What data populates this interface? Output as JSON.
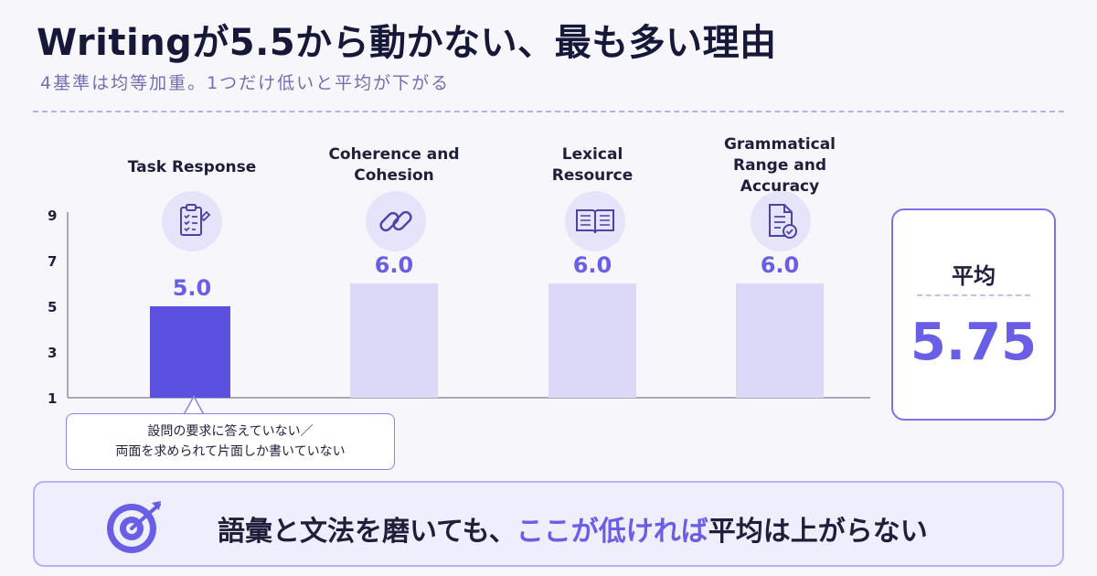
{
  "header": {
    "title": "Writingが5.5から動かない、最も多い理由",
    "subtitle": "4基準は均等加重。1つだけ低いと平均が下がる"
  },
  "chart_data": {
    "type": "bar",
    "categories": [
      "Task Response",
      "Coherence and Cohesion",
      "Lexical Resource",
      "Grammatical Range and Accuracy"
    ],
    "category_lines": [
      [
        "Task Response"
      ],
      [
        "Coherence and",
        "Cohesion"
      ],
      [
        "Lexical",
        "Resource"
      ],
      [
        "Grammatical",
        "Range and",
        "Accuracy"
      ]
    ],
    "values": [
      5.0,
      6.0,
      6.0,
      6.0
    ],
    "value_labels": [
      "5.0",
      "6.0",
      "6.0",
      "6.0"
    ],
    "ylim": [
      1,
      9
    ],
    "yticks": [
      "1",
      "3",
      "5",
      "7",
      "9"
    ],
    "highlight_index": 0,
    "colors": {
      "highlight": "#5c50e0",
      "normal": "#dcd9f8",
      "value_text": "#6a5ee6"
    },
    "grid": false
  },
  "icons": [
    "clipboard-icon",
    "link-icon",
    "book-icon",
    "document-check-icon"
  ],
  "average": {
    "label": "平均",
    "value": "5.75"
  },
  "callout": {
    "line1": "設問の要求に答えていない／",
    "line2": "両面を求められて片面しか書いていない"
  },
  "banner": {
    "text_before": "語彙と文法を磨いても、",
    "text_highlight": "ここが低ければ",
    "text_after": "平均は上がらない"
  }
}
